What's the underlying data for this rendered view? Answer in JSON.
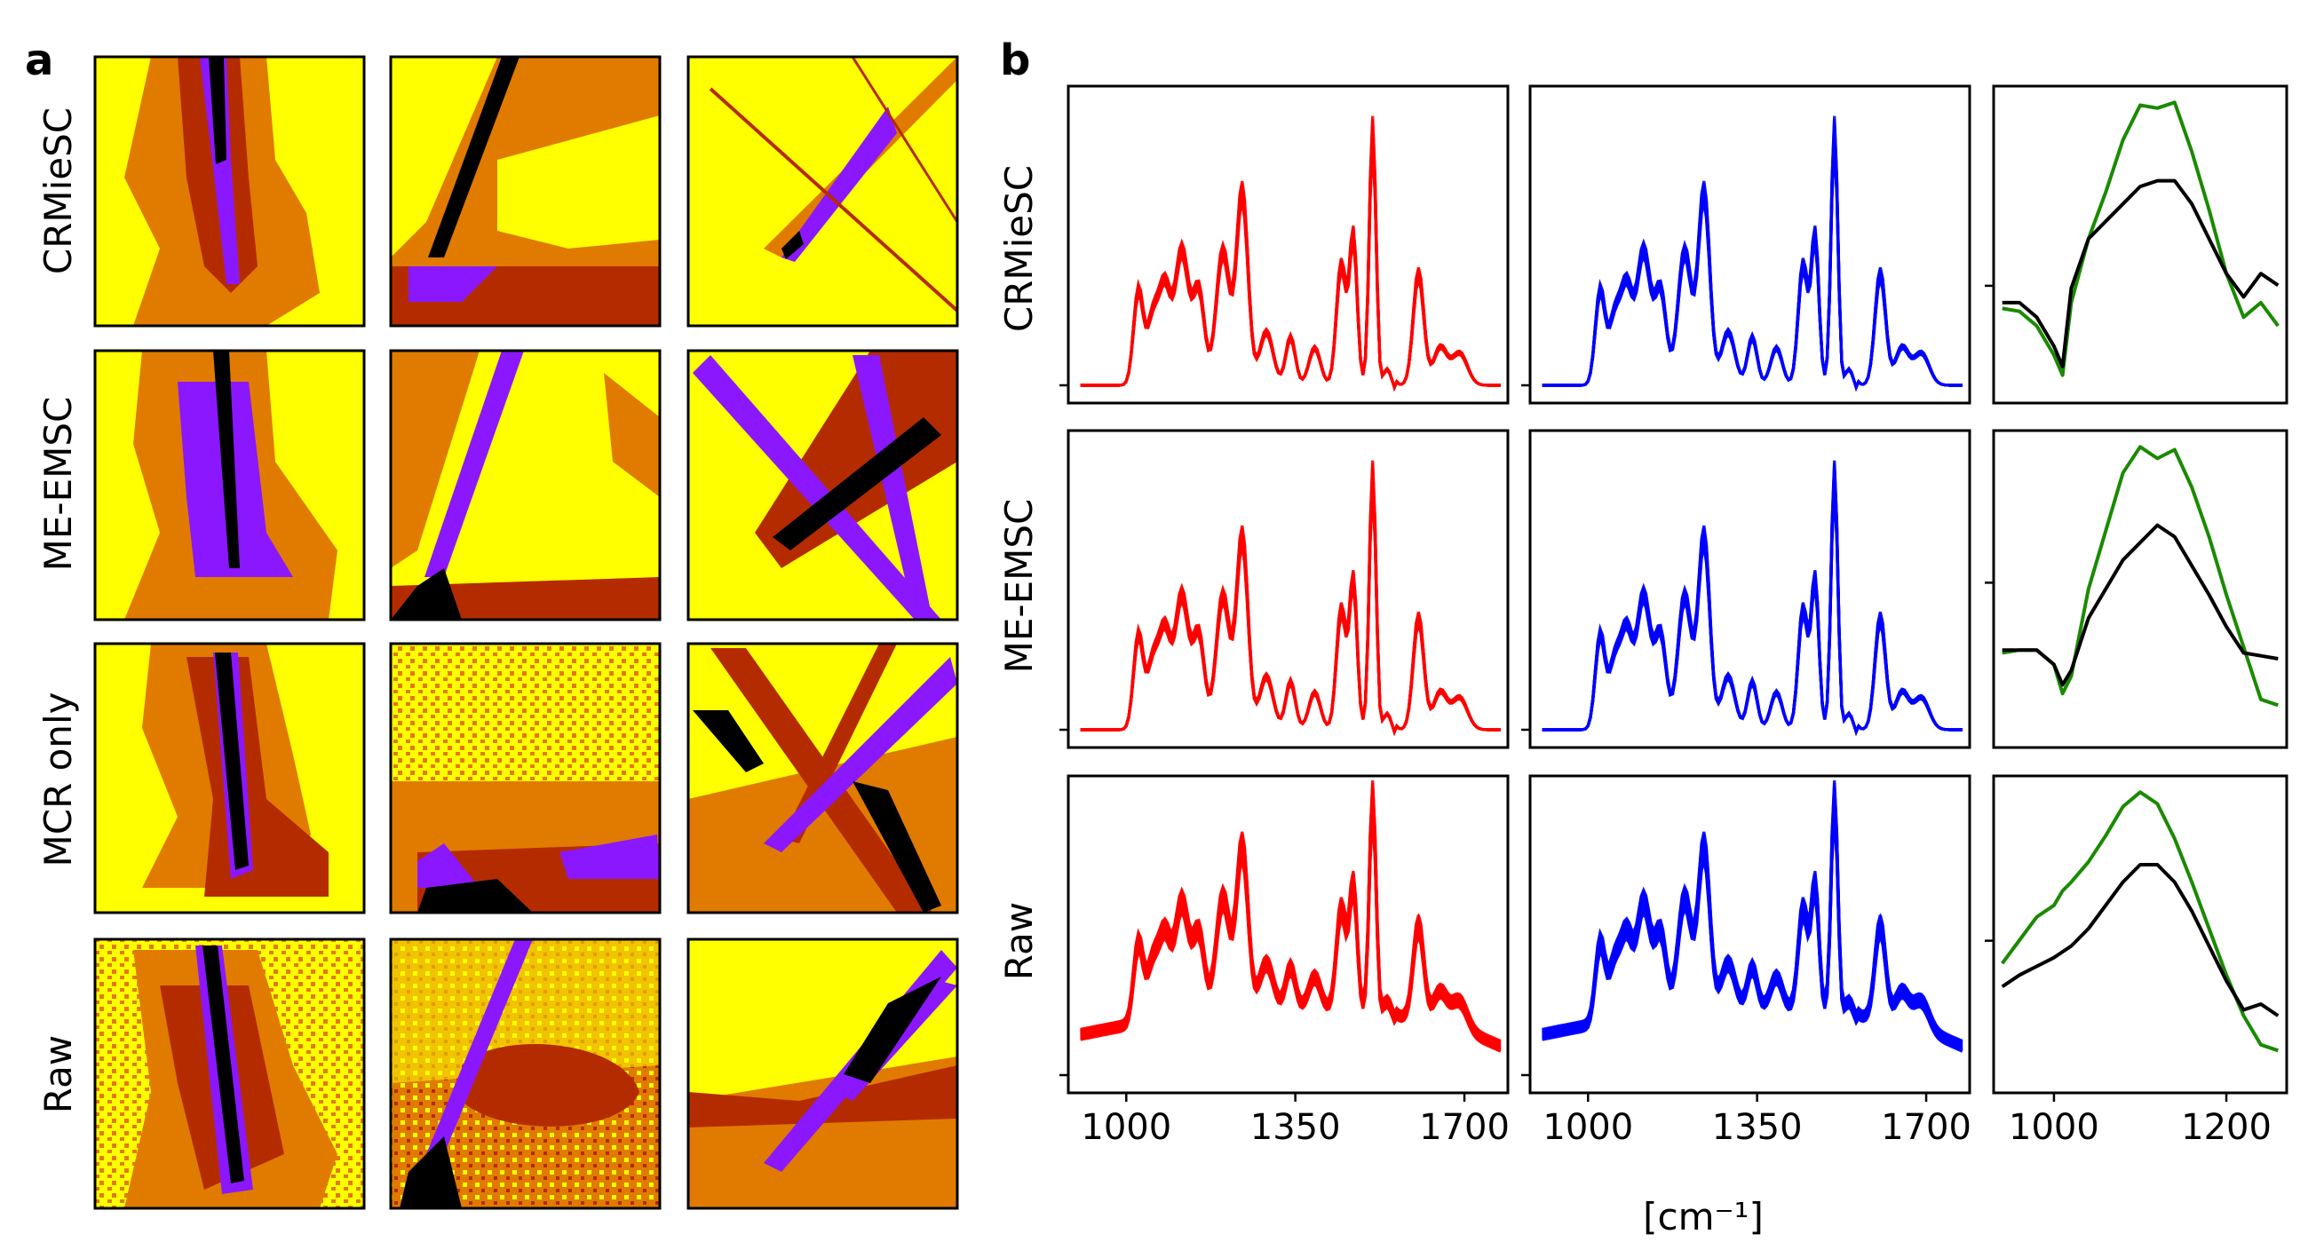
{
  "panel_labels": {
    "a": "a",
    "b": "b"
  },
  "row_labels": [
    "CRMieSC",
    "ME-EMSC",
    "MCR only",
    "Raw"
  ],
  "colors": {
    "yellow": "#ffff00",
    "orange": "#e07b00",
    "darkred": "#b52b00",
    "purple": "#8b17ff",
    "black": "#000000",
    "red": "#ff0000",
    "blue": "#0000ff",
    "green": "#1a8a00",
    "line_black": "#000000"
  },
  "map_images": {
    "description_classes": [
      "yellow",
      "orange",
      "darkred",
      "purple",
      "black"
    ],
    "rows": [
      "CRMieSC",
      "ME-EMSC",
      "MCR only",
      "Raw"
    ],
    "columns": 3
  },
  "chart_data": [
    {
      "type": "line",
      "panel": "b",
      "column": "red",
      "rows": [
        "CRMieSC",
        "ME-EMSC",
        "Raw"
      ],
      "x": [
        900,
        960,
        1000,
        1030,
        1060,
        1090,
        1120,
        1150,
        1180,
        1210,
        1240,
        1270,
        1300,
        1330,
        1360,
        1390,
        1420,
        1440,
        1460,
        1480,
        1500,
        1520,
        1540,
        1560,
        1580,
        1600,
        1620,
        1650,
        1680,
        1710,
        1740,
        1780
      ],
      "xticks": [
        1000,
        1350,
        1700
      ],
      "xlim": [
        880,
        1790
      ],
      "series_color": "red",
      "ylabel": ""
    },
    {
      "type": "line",
      "panel": "b",
      "column": "blue",
      "rows": [
        "CRMieSC",
        "ME-EMSC",
        "Raw"
      ],
      "xticks": [
        1000,
        1350,
        1700
      ],
      "xlim": [
        880,
        1790
      ],
      "xlabel": "[cm⁻¹]",
      "series_color": "blue"
    },
    {
      "type": "line",
      "panel": "b",
      "column": "zoom",
      "rows": [
        "CRMieSC",
        "ME-EMSC",
        "Raw"
      ],
      "x": [
        940,
        960,
        980,
        1000,
        1010,
        1020,
        1040,
        1060,
        1080,
        1100,
        1120,
        1140,
        1160,
        1180,
        1200,
        1220,
        1240,
        1260
      ],
      "xticks": [
        1000,
        1200
      ],
      "xlim": [
        930,
        1270
      ],
      "series": [
        {
          "name": "green",
          "row": "CRMieSC",
          "values": [
            0.28,
            0.27,
            0.22,
            0.12,
            0.05,
            0.3,
            0.52,
            0.68,
            0.86,
            0.98,
            0.97,
            0.99,
            0.82,
            0.62,
            0.4,
            0.25,
            0.3,
            0.22
          ]
        },
        {
          "name": "black",
          "row": "CRMieSC",
          "values": [
            0.3,
            0.3,
            0.25,
            0.15,
            0.08,
            0.35,
            0.52,
            0.58,
            0.64,
            0.7,
            0.72,
            0.72,
            0.64,
            0.52,
            0.4,
            0.32,
            0.4,
            0.36
          ]
        },
        {
          "name": "green",
          "row": "ME-EMSC",
          "values": [
            0.28,
            0.29,
            0.29,
            0.24,
            0.14,
            0.2,
            0.5,
            0.7,
            0.9,
            0.99,
            0.95,
            0.98,
            0.85,
            0.68,
            0.48,
            0.3,
            0.12,
            0.1
          ]
        },
        {
          "name": "black",
          "row": "ME-EMSC",
          "values": [
            0.29,
            0.29,
            0.29,
            0.24,
            0.17,
            0.22,
            0.4,
            0.5,
            0.6,
            0.66,
            0.72,
            0.68,
            0.58,
            0.48,
            0.37,
            0.28,
            0.27,
            0.26
          ]
        },
        {
          "name": "green",
          "row": "Raw",
          "values": [
            0.4,
            0.48,
            0.56,
            0.6,
            0.65,
            0.68,
            0.75,
            0.84,
            0.94,
            0.99,
            0.95,
            0.83,
            0.68,
            0.52,
            0.36,
            0.22,
            0.12,
            0.1
          ]
        },
        {
          "name": "black",
          "row": "Raw",
          "values": [
            0.32,
            0.36,
            0.39,
            0.42,
            0.44,
            0.46,
            0.52,
            0.6,
            0.68,
            0.74,
            0.74,
            0.68,
            0.58,
            0.46,
            0.34,
            0.24,
            0.26,
            0.22
          ]
        }
      ]
    }
  ]
}
